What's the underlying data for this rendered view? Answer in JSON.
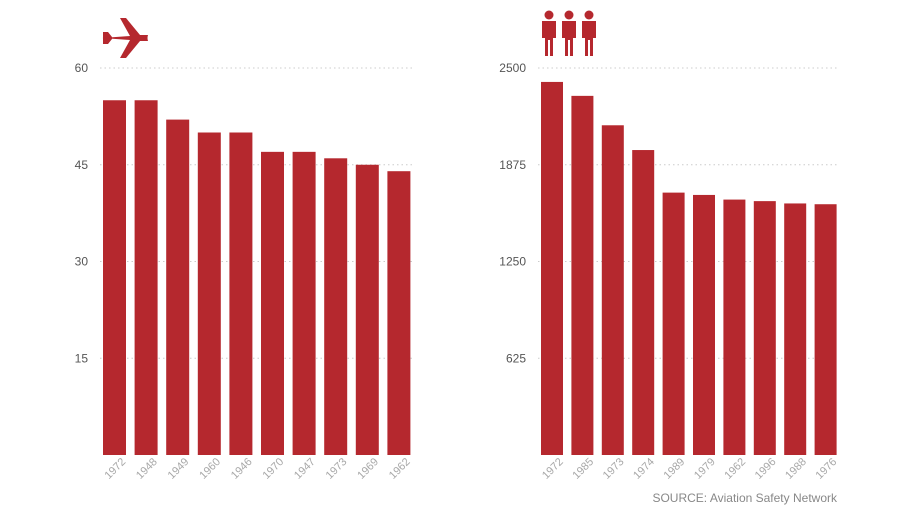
{
  "colors": {
    "bar": "#b5282e",
    "grid": "#cccccc",
    "tick": "#555555",
    "category": "#a8a8a8"
  },
  "source": "SOURCE: Aviation Safety Network",
  "chart_data": [
    {
      "type": "bar",
      "icon": "airplane-icon",
      "title": "",
      "xlabel": "",
      "ylabel": "",
      "ylim": [
        0,
        60
      ],
      "yticks": [
        15,
        30,
        45,
        60
      ],
      "grid": true,
      "categories": [
        "1972",
        "1948",
        "1949",
        "1960",
        "1946",
        "1970",
        "1947",
        "1973",
        "1969",
        "1962"
      ],
      "values": [
        55,
        55,
        52,
        50,
        50,
        47,
        47,
        46,
        45,
        44
      ]
    },
    {
      "type": "bar",
      "icon": "people-icon",
      "title": "",
      "xlabel": "",
      "ylabel": "",
      "ylim": [
        0,
        2500
      ],
      "yticks": [
        625,
        1250,
        1875,
        2500
      ],
      "grid": true,
      "categories": [
        "1972",
        "1985",
        "1973",
        "1974",
        "1989",
        "1979",
        "1962",
        "1996",
        "1988",
        "1976"
      ],
      "values": [
        2410,
        2320,
        2130,
        1970,
        1695,
        1680,
        1650,
        1640,
        1625,
        1620
      ]
    }
  ]
}
